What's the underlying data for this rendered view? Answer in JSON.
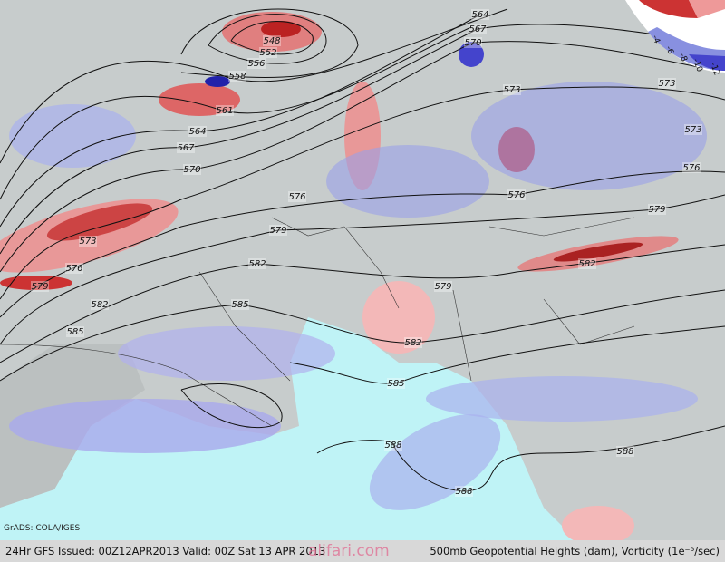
{
  "credit": "GrADS: COLA/IGES",
  "footer": {
    "left": "24Hr GFS Issued: 00Z12APR2013 Valid: 00Z Sat 13 APR 2013",
    "right": "500mb Geopotential Heights (dam), Vorticity (1e⁻⁵/sec)"
  },
  "watermark": "alifari.com",
  "legend_labels": [
    "-4",
    "-6",
    "-8",
    "-10",
    "-12"
  ],
  "contour_labels": [
    "548",
    "552",
    "556",
    "558",
    "561",
    "564",
    "567",
    "570",
    "564",
    "567",
    "570",
    "573",
    "573",
    "573",
    "576",
    "576",
    "576",
    "579",
    "579",
    "573",
    "576",
    "579",
    "582",
    "582",
    "579",
    "582",
    "585",
    "585",
    "582",
    "585",
    "588",
    "588",
    "588"
  ]
}
